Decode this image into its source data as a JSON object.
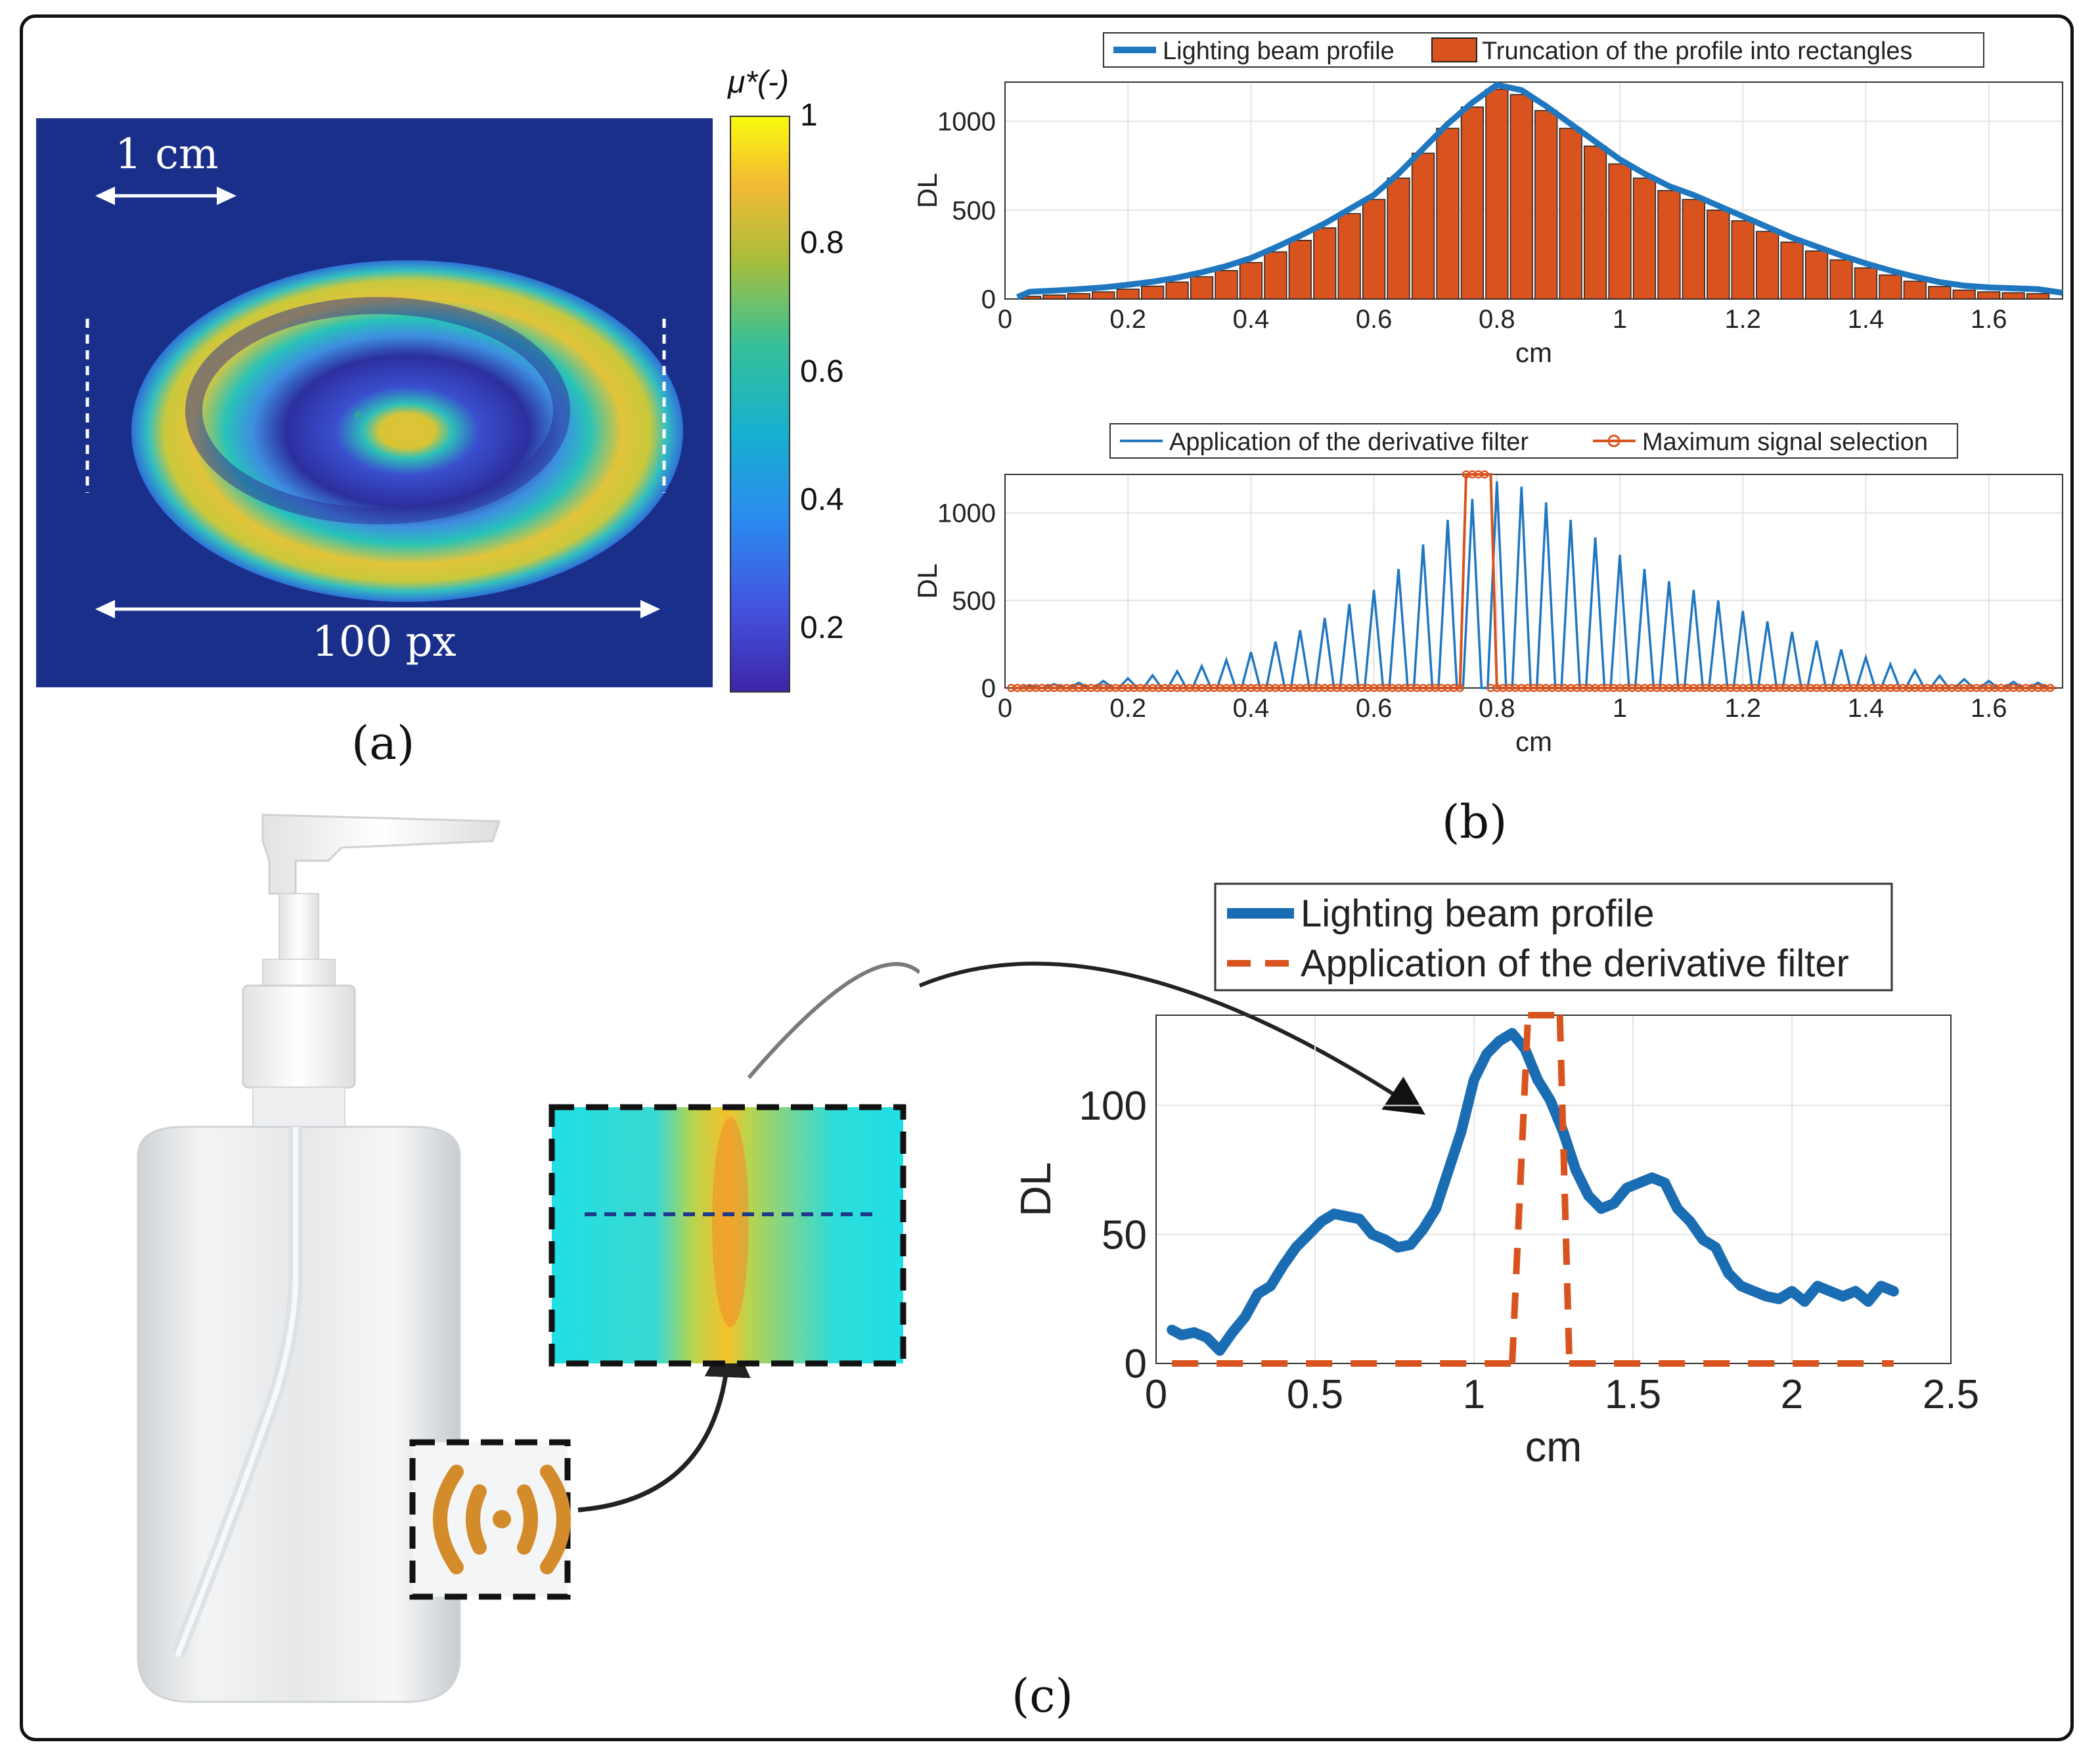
{
  "panel_a": {
    "label": "(a)",
    "scale_top": "1 cm",
    "scale_bottom": "100 px",
    "colorbar_title": "μ*(-)",
    "colorbar_ticks": [
      "1",
      "0.8",
      "0.6",
      "0.4",
      "0.2"
    ],
    "colors": {
      "background": "#1a2f8a",
      "yellow": "#f5d33a",
      "cyan": "#27c4c4",
      "blue": "#3b5fd6"
    }
  },
  "panel_b": {
    "label": "(b)"
  },
  "panel_c": {
    "label": "(c)"
  },
  "chart_data": [
    {
      "id": "b-top",
      "type": "bar",
      "legend": [
        "Lighting beam profile",
        "Truncation of the profile into rectangles"
      ],
      "xlabel": "cm",
      "ylabel": "DL",
      "xlim": [
        0,
        1.72
      ],
      "ylim": [
        0,
        1220
      ],
      "xticks": [
        "0",
        "0.2",
        "0.4",
        "0.6",
        "0.8",
        "1",
        "1.2",
        "1.4",
        "1.6"
      ],
      "yticks": [
        "0",
        "500",
        "1000"
      ],
      "bar_width": 0.036,
      "x": [
        0.04,
        0.08,
        0.12,
        0.16,
        0.2,
        0.24,
        0.28,
        0.32,
        0.36,
        0.4,
        0.44,
        0.48,
        0.52,
        0.56,
        0.6,
        0.64,
        0.68,
        0.72,
        0.76,
        0.8,
        0.84,
        0.88,
        0.92,
        0.96,
        1.0,
        1.04,
        1.08,
        1.12,
        1.16,
        1.2,
        1.24,
        1.28,
        1.32,
        1.36,
        1.4,
        1.44,
        1.48,
        1.52,
        1.56,
        1.6,
        1.64,
        1.68
      ],
      "values": [
        15,
        22,
        30,
        40,
        55,
        72,
        95,
        125,
        160,
        205,
        265,
        330,
        400,
        480,
        560,
        680,
        820,
        960,
        1080,
        1180,
        1150,
        1060,
        960,
        860,
        760,
        680,
        610,
        560,
        500,
        440,
        380,
        320,
        270,
        220,
        175,
        135,
        100,
        70,
        50,
        40,
        35,
        30
      ],
      "series_colors": {
        "profile": "#1f77c0",
        "bars": "#d9531e"
      }
    },
    {
      "id": "b-bottom",
      "type": "line",
      "legend": [
        "Application of the derivative filter",
        "Maximum signal selection"
      ],
      "xlabel": "cm",
      "ylabel": "DL",
      "xlim": [
        0,
        1.72
      ],
      "ylim": [
        0,
        1220
      ],
      "xticks": [
        "0",
        "0.2",
        "0.4",
        "0.6",
        "0.8",
        "1",
        "1.2",
        "1.4",
        "1.6"
      ],
      "yticks": [
        "0",
        "500",
        "1000"
      ],
      "spike_x": [
        0.04,
        0.08,
        0.12,
        0.16,
        0.2,
        0.24,
        0.28,
        0.32,
        0.36,
        0.4,
        0.44,
        0.48,
        0.52,
        0.56,
        0.6,
        0.64,
        0.68,
        0.72,
        0.76,
        0.8,
        0.84,
        0.88,
        0.92,
        0.96,
        1.0,
        1.04,
        1.08,
        1.12,
        1.16,
        1.2,
        1.24,
        1.28,
        1.32,
        1.36,
        1.4,
        1.44,
        1.48,
        1.52,
        1.56,
        1.6,
        1.64,
        1.68
      ],
      "spike_values": [
        15,
        22,
        30,
        40,
        55,
        72,
        95,
        125,
        160,
        205,
        265,
        330,
        400,
        480,
        560,
        680,
        820,
        960,
        1080,
        1180,
        1150,
        1060,
        960,
        860,
        760,
        680,
        610,
        560,
        500,
        440,
        380,
        320,
        270,
        220,
        175,
        135,
        100,
        70,
        50,
        40,
        35,
        30
      ],
      "selection": {
        "from": 0.75,
        "to": 0.79,
        "value": 1220
      },
      "series_colors": {
        "filter": "#1f77c0",
        "selection": "#d9531e"
      }
    },
    {
      "id": "c",
      "type": "line",
      "legend": [
        "Lighting beam profile",
        "Application of the derivative filter"
      ],
      "xlabel": "cm",
      "ylabel": "DL",
      "xlim": [
        0,
        2.5
      ],
      "ylim": [
        0,
        135
      ],
      "xticks": [
        "0",
        "0.5",
        "1",
        "1.5",
        "2",
        "2.5"
      ],
      "yticks": [
        "0",
        "50",
        "100"
      ],
      "profile_x": [
        0.05,
        0.08,
        0.12,
        0.16,
        0.2,
        0.24,
        0.28,
        0.32,
        0.36,
        0.4,
        0.44,
        0.48,
        0.52,
        0.56,
        0.6,
        0.64,
        0.68,
        0.72,
        0.76,
        0.8,
        0.84,
        0.88,
        0.92,
        0.96,
        1.0,
        1.04,
        1.08,
        1.12,
        1.16,
        1.2,
        1.24,
        1.28,
        1.32,
        1.36,
        1.4,
        1.44,
        1.48,
        1.52,
        1.56,
        1.6,
        1.64,
        1.68,
        1.72,
        1.76,
        1.8,
        1.84,
        1.88,
        1.92,
        1.96,
        2.0,
        2.04,
        2.08,
        2.12,
        2.16,
        2.2,
        2.24,
        2.28,
        2.32
      ],
      "profile_y": [
        13,
        11,
        12,
        10,
        5,
        12,
        18,
        27,
        30,
        38,
        45,
        50,
        55,
        58,
        57,
        56,
        50,
        48,
        45,
        46,
        52,
        60,
        75,
        90,
        110,
        120,
        125,
        128,
        122,
        110,
        102,
        90,
        75,
        65,
        60,
        62,
        68,
        70,
        72,
        70,
        60,
        55,
        48,
        45,
        35,
        30,
        28,
        26,
        25,
        28,
        24,
        30,
        28,
        26,
        28,
        24,
        30,
        28
      ],
      "filter_segments": [
        {
          "x": [
            0.05,
            1.12
          ],
          "y": [
            0,
            0
          ]
        },
        {
          "x": [
            1.12,
            1.17
          ],
          "y": [
            0,
            135
          ]
        },
        {
          "x": [
            1.17,
            1.27
          ],
          "y": [
            135,
            135
          ]
        },
        {
          "x": [
            1.27,
            1.3
          ],
          "y": [
            135,
            0
          ]
        },
        {
          "x": [
            1.3,
            2.32
          ],
          "y": [
            0,
            0
          ]
        }
      ],
      "series_colors": {
        "profile": "#1b6db3",
        "filter": "#d9531e"
      }
    }
  ]
}
